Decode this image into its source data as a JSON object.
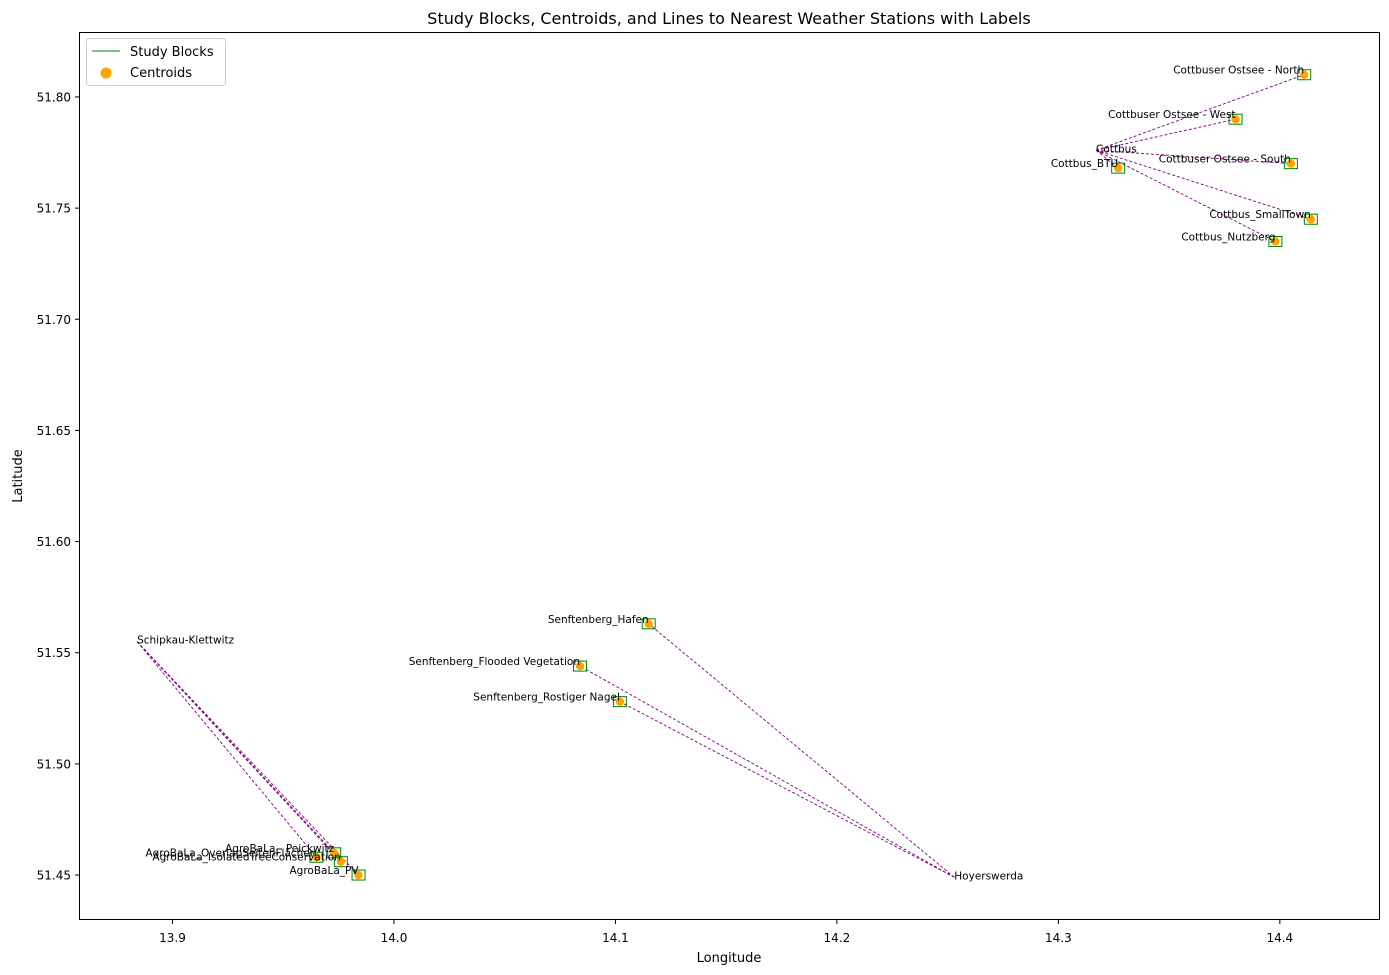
{
  "chart_data": {
    "type": "scatter",
    "title": "Study Blocks, Centroids, and Lines to Nearest Weather Stations with Labels",
    "xlabel": "Longitude",
    "ylabel": "Latitude",
    "xlim": [
      13.858,
      14.445
    ],
    "ylim": [
      51.43,
      51.829
    ],
    "x_ticks": [
      "13.9",
      "14.0",
      "14.1",
      "14.2",
      "14.3",
      "14.4"
    ],
    "x_tick_values": [
      13.9,
      14.0,
      14.1,
      14.2,
      14.3,
      14.4
    ],
    "y_ticks": [
      "51.45",
      "51.50",
      "51.55",
      "51.60",
      "51.65",
      "51.70",
      "51.75",
      "51.80"
    ],
    "y_tick_values": [
      51.45,
      51.5,
      51.55,
      51.6,
      51.65,
      51.7,
      51.75,
      51.8
    ],
    "grid": false,
    "legend_placement": "top-left",
    "legend": [
      {
        "label": "Study Blocks",
        "kind": "line",
        "color": "#008000"
      },
      {
        "label": "Centroids",
        "kind": "marker",
        "color": "#FFA500"
      }
    ],
    "colors": {
      "block_edge": "#008000",
      "centroid": "#FFA500",
      "link_line": "#800080"
    },
    "stations": [
      {
        "name": "Cottbus",
        "lon": 14.317,
        "lat": 51.776
      },
      {
        "name": "Schipkau-Klettwitz",
        "lon": 13.884,
        "lat": 51.555
      },
      {
        "name": "Hoyerswerda",
        "lon": 14.253,
        "lat": 51.449
      }
    ],
    "sites": [
      {
        "name": "Cottbuser Ostsee - North",
        "lon": 14.411,
        "lat": 51.81,
        "station": "Cottbus"
      },
      {
        "name": "Cottbuser Ostsee - West",
        "lon": 14.38,
        "lat": 51.79,
        "station": "Cottbus"
      },
      {
        "name": "Cottbuser Ostsee - South",
        "lon": 14.405,
        "lat": 51.77,
        "station": "Cottbus"
      },
      {
        "name": "Cottbus_BTU",
        "lon": 14.327,
        "lat": 51.768,
        "station": "Cottbus"
      },
      {
        "name": "Cottbus_SmallTown",
        "lon": 14.414,
        "lat": 51.745,
        "station": "Cottbus"
      },
      {
        "name": "Cottbus_Nutzberg",
        "lon": 14.398,
        "lat": 51.735,
        "station": "Cottbus"
      },
      {
        "name": "Senftenberg_Hafen",
        "lon": 14.115,
        "lat": 51.563,
        "station": "Hoyerswerda"
      },
      {
        "name": "Senftenberg_Flooded Vegetation",
        "lon": 14.084,
        "lat": 51.544,
        "station": "Hoyerswerda"
      },
      {
        "name": "Senftenberg_Rostiger Nagel",
        "lon": 14.102,
        "lat": 51.528,
        "station": "Hoyerswerda"
      },
      {
        "name": "AgroBaLa - Peickwitz",
        "lon": 13.973,
        "lat": 51.46,
        "station": "Schipkau-Klettwitz"
      },
      {
        "name": "AgroBaLa_OverlapSeitenFlächen",
        "lon": 13.965,
        "lat": 51.458,
        "station": "Schipkau-Klettwitz"
      },
      {
        "name": "AgroBaLa_IsolatedTreeConservation",
        "lon": 13.976,
        "lat": 51.456,
        "station": "Schipkau-Klettwitz"
      },
      {
        "name": "AgroBaLa_PV",
        "lon": 13.984,
        "lat": 51.45,
        "station": "Schipkau-Klettwitz"
      }
    ]
  }
}
